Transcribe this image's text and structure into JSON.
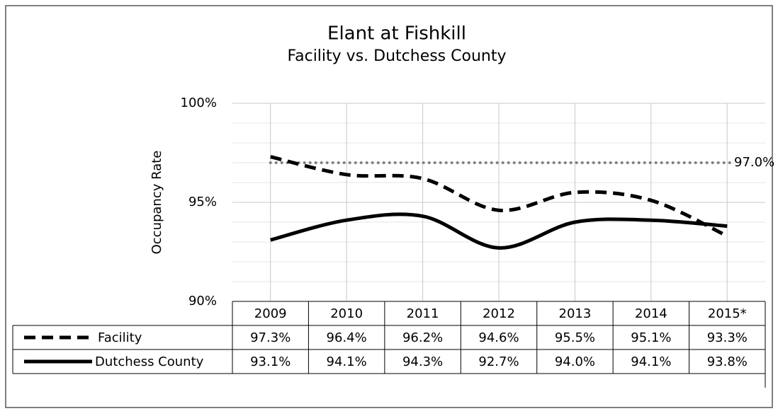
{
  "chart_data": {
    "type": "line",
    "title": "Elant at Fishkill",
    "subtitle": "Facility vs. Dutchess County",
    "y_label": "Occupancy Rate",
    "categories": [
      "2009",
      "2010",
      "2011",
      "2012",
      "2013",
      "2014",
      "2015*"
    ],
    "series": [
      {
        "name": "Facility",
        "color": "#000000",
        "style": "dashed",
        "values": [
          97.3,
          96.4,
          96.2,
          94.6,
          95.5,
          95.1,
          93.3
        ],
        "value_labels": [
          "97.3%",
          "96.4%",
          "96.2%",
          "94.6%",
          "95.5%",
          "95.1%",
          "93.3%"
        ]
      },
      {
        "name": "Dutchess County",
        "color": "#000000",
        "style": "solid",
        "values": [
          93.1,
          94.1,
          94.3,
          92.7,
          94.0,
          94.1,
          93.8
        ],
        "value_labels": [
          "93.1%",
          "94.1%",
          "94.3%",
          "92.7%",
          "94.0%",
          "94.1%",
          "93.8%"
        ]
      }
    ],
    "reference_line": {
      "value": 97,
      "label": "97.0%",
      "color": "#808080"
    },
    "ylim": [
      90,
      100
    ],
    "yticks": [
      {
        "value": 90,
        "label": "90%"
      },
      {
        "value": 95,
        "label": "95%"
      },
      {
        "value": 100,
        "label": "100%"
      }
    ],
    "minor_yticks": [
      91,
      92,
      93,
      94,
      96,
      97,
      98,
      99
    ],
    "grid": true,
    "data_table": true
  }
}
